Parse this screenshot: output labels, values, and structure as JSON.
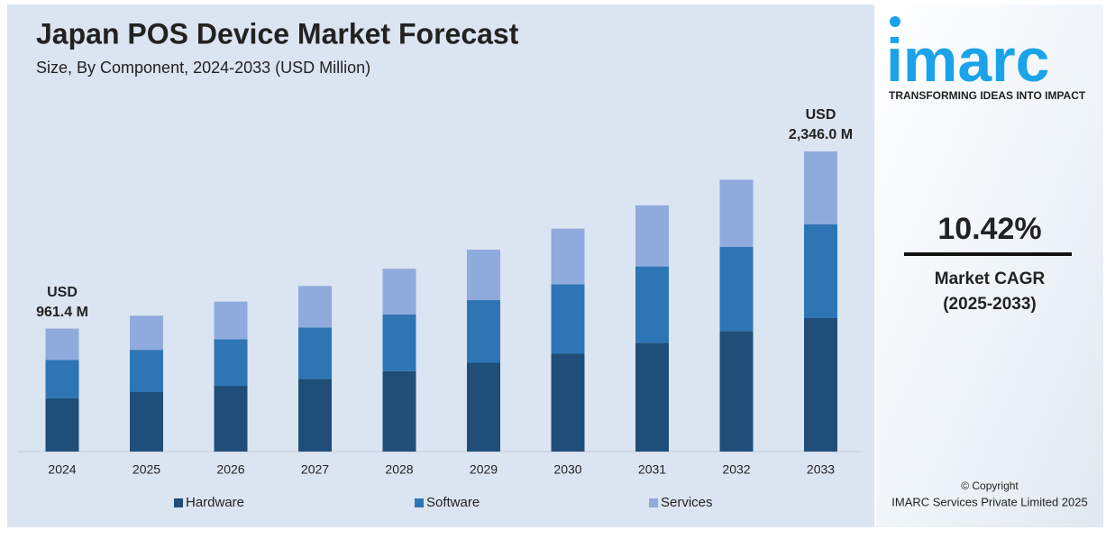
{
  "chart_data": {
    "type": "stacked-bar",
    "title": "Japan POS Device Market Forecast",
    "subtitle": "Size, By Component, 2024-2033 (USD Million)",
    "categories": [
      "2024",
      "2025",
      "2026",
      "2027",
      "2028",
      "2029",
      "2030",
      "2031",
      "2032",
      "2033"
    ],
    "series": [
      {
        "name": "Hardware",
        "color": "#1f4e79",
        "values": [
          416.2,
          465.0,
          514.0,
          568.0,
          628.0,
          694.0,
          767.0,
          850.0,
          940.0,
          1042.7
        ]
      },
      {
        "name": "Software",
        "color": "#2e75b6",
        "values": [
          301.0,
          330.0,
          364.0,
          402.0,
          444.0,
          490.0,
          541.0,
          597.0,
          660.0,
          732.7
        ]
      },
      {
        "name": "Services",
        "color": "#8faadc",
        "values": [
          244.2,
          266.6,
          294.2,
          324.4,
          357.3,
          394.3,
          434.7,
          477.3,
          524.9,
          570.6
        ]
      }
    ],
    "total_labels": [
      {
        "category_index": 0,
        "value": 961.4,
        "lines": [
          "USD",
          "961.4 M"
        ]
      },
      {
        "category_index": 9,
        "value": 2346.0,
        "lines": [
          "USD",
          "2,346.0 M"
        ]
      }
    ],
    "legend": "bottom"
  },
  "sidebar": {
    "logo": "imarc",
    "tagline": "TRANSFORMING IDEAS INTO IMPACT",
    "cagr": "10.42%",
    "cagr_label": "Market CAGR",
    "cagr_period": "(2025-2033)",
    "copyright": "© Copyright",
    "company": "IMARC Services Private Limited 2025"
  }
}
